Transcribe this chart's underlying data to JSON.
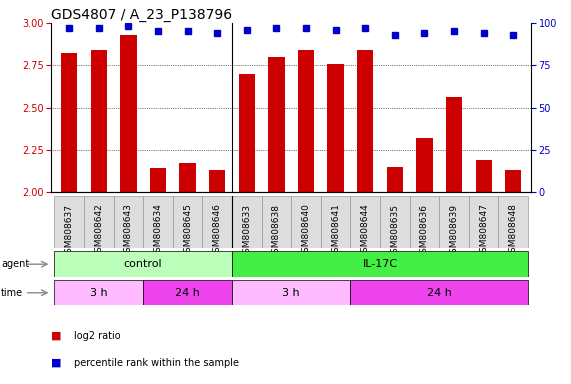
{
  "title": "GDS4807 / A_23_P138796",
  "samples": [
    "GSM808637",
    "GSM808642",
    "GSM808643",
    "GSM808634",
    "GSM808645",
    "GSM808646",
    "GSM808633",
    "GSM808638",
    "GSM808640",
    "GSM808641",
    "GSM808644",
    "GSM808635",
    "GSM808636",
    "GSM808639",
    "GSM808647",
    "GSM808648"
  ],
  "log2_values": [
    2.82,
    2.84,
    2.93,
    2.14,
    2.17,
    2.13,
    2.7,
    2.8,
    2.84,
    2.76,
    2.84,
    2.15,
    2.32,
    2.56,
    2.19,
    2.13
  ],
  "percentile_values": [
    97,
    97,
    98,
    95,
    95,
    94,
    96,
    97,
    97,
    96,
    97,
    93,
    94,
    95,
    94,
    93
  ],
  "ymin": 2.0,
  "ymax": 3.0,
  "yticks": [
    2.0,
    2.25,
    2.5,
    2.75,
    3.0
  ],
  "y2min": 0,
  "y2max": 100,
  "y2ticks": [
    0,
    25,
    50,
    75,
    100
  ],
  "bar_color": "#cc0000",
  "dot_color": "#0000cc",
  "agent_groups": [
    {
      "label": "control",
      "start": 0,
      "end": 6,
      "color": "#bbffbb"
    },
    {
      "label": "IL-17C",
      "start": 6,
      "end": 16,
      "color": "#44ee44"
    }
  ],
  "time_groups": [
    {
      "label": "3 h",
      "start": 0,
      "end": 3,
      "color": "#ffbbff"
    },
    {
      "label": "24 h",
      "start": 3,
      "end": 6,
      "color": "#ee44ee"
    },
    {
      "label": "3 h",
      "start": 6,
      "end": 10,
      "color": "#ffbbff"
    },
    {
      "label": "24 h",
      "start": 10,
      "end": 16,
      "color": "#ee44ee"
    }
  ],
  "background_color": "#ffffff",
  "title_fontsize": 10,
  "tick_fontsize": 7,
  "label_fontsize": 8,
  "bar_width": 0.55,
  "separator_col": 5.5
}
